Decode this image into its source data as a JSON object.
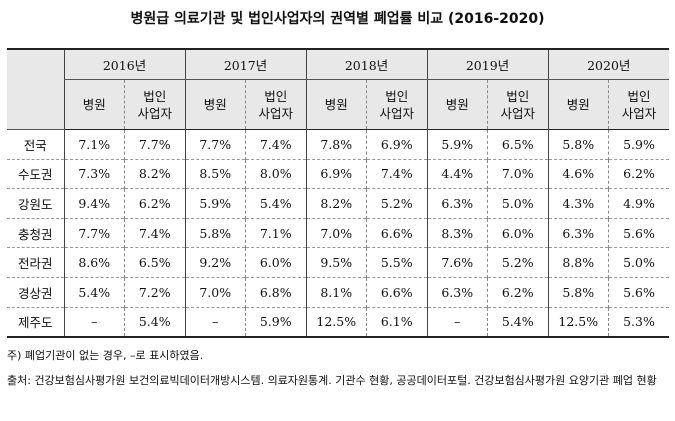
{
  "title": "병원급 의료기관 및 법인사업자의 권역별 폐업률 비교 (2016-2020)",
  "years": [
    "2016년",
    "2017년",
    "2018년",
    "2019년",
    "2020년"
  ],
  "sub_headers": {
    "hospital": "병원",
    "corp_line1": "법인",
    "corp_line2": "사업자"
  },
  "rows": [
    {
      "region": "전국",
      "values": [
        "7.1%",
        "7.7%",
        "7.7%",
        "7.4%",
        "7.8%",
        "6.9%",
        "5.9%",
        "6.5%",
        "5.8%",
        "5.9%"
      ]
    },
    {
      "region": "수도권",
      "values": [
        "7.3%",
        "8.2%",
        "8.5%",
        "8.0%",
        "6.9%",
        "7.4%",
        "4.4%",
        "7.0%",
        "4.6%",
        "6.2%"
      ]
    },
    {
      "region": "강원도",
      "values": [
        "9.4%",
        "6.2%",
        "5.9%",
        "5.4%",
        "8.2%",
        "5.2%",
        "6.3%",
        "5.0%",
        "4.3%",
        "4.9%"
      ]
    },
    {
      "region": "충청권",
      "values": [
        "7.7%",
        "7.4%",
        "5.8%",
        "7.1%",
        "7.0%",
        "6.6%",
        "8.3%",
        "6.0%",
        "6.3%",
        "5.6%"
      ]
    },
    {
      "region": "전라권",
      "values": [
        "8.6%",
        "6.5%",
        "9.2%",
        "6.0%",
        "9.5%",
        "5.5%",
        "7.6%",
        "5.2%",
        "8.8%",
        "5.0%"
      ]
    },
    {
      "region": "경상권",
      "values": [
        "5.4%",
        "7.2%",
        "7.0%",
        "6.8%",
        "8.1%",
        "6.6%",
        "6.3%",
        "6.2%",
        "5.8%",
        "5.6%"
      ]
    },
    {
      "region": "제주도",
      "values": [
        "–",
        "5.4%",
        "–",
        "5.9%",
        "12.5%",
        "6.1%",
        "–",
        "5.4%",
        "12.5%",
        "5.3%"
      ]
    }
  ],
  "note": "주) 폐업기관이 없는 경우, –로 표시하였음.",
  "source": "출처: 건강보험심사평가원 보건의료빅데이터개방시스템. 의료자원통계. 기관수 현황, 공공데이터포털. 건강보험심사평가원 요양기관 폐업 현황"
}
